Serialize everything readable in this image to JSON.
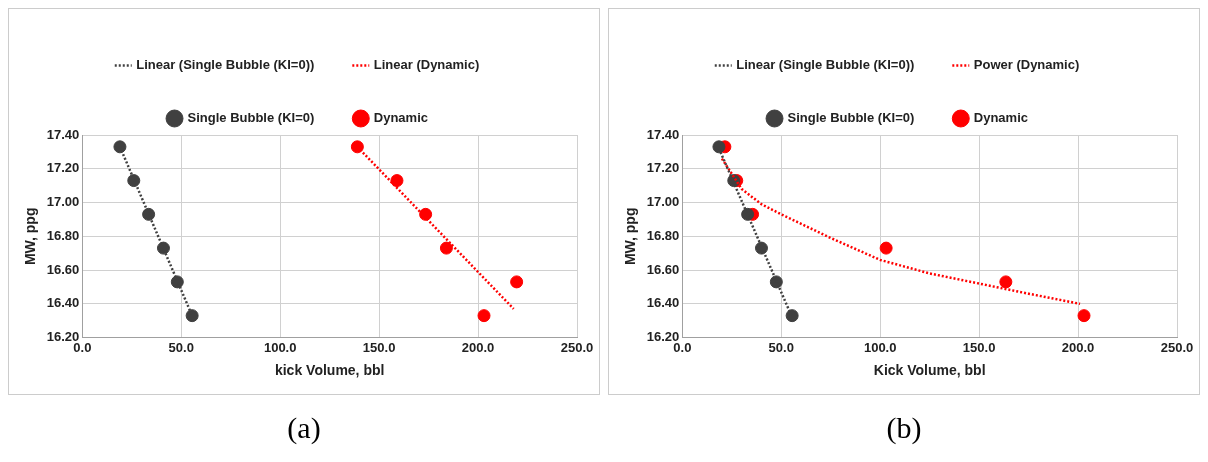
{
  "chart_data": [
    {
      "type": "scatter",
      "xlabel": "kick Volume, bbl",
      "ylabel": "MW, ppg",
      "xlim": [
        0,
        250
      ],
      "ylim": [
        16.2,
        17.4
      ],
      "xticks": [
        {
          "value": 0,
          "label": "0.0"
        },
        {
          "value": 50,
          "label": "50.0"
        },
        {
          "value": 100,
          "label": "100.0"
        },
        {
          "value": 150,
          "label": "150.0"
        },
        {
          "value": 200,
          "label": "200.0"
        },
        {
          "value": 250,
          "label": "250.0"
        }
      ],
      "yticks": [
        {
          "value": 16.2,
          "label": "16.20"
        },
        {
          "value": 16.4,
          "label": "16.40"
        },
        {
          "value": 16.6,
          "label": "16.60"
        },
        {
          "value": 16.8,
          "label": "16.80"
        },
        {
          "value": 17.0,
          "label": "17.00"
        },
        {
          "value": 17.2,
          "label": "17.20"
        },
        {
          "value": 17.4,
          "label": "17.40"
        }
      ],
      "grid": true,
      "legend": "top",
      "marker": "circle",
      "annotations": [
        "(a)"
      ],
      "series": [
        {
          "name": "Dynamic",
          "color": "#ff0000",
          "x": [
            139,
            159,
            173.5,
            184,
            219.5,
            203
          ],
          "values": [
            17.33,
            17.13,
            16.93,
            16.73,
            16.53,
            16.33
          ]
        },
        {
          "name": "Single Bubble (KI=0)",
          "color": "#404040",
          "x": [
            19,
            26,
            33.5,
            41,
            48,
            55.5
          ],
          "values": [
            17.33,
            17.13,
            16.93,
            16.73,
            16.53,
            16.33
          ]
        },
        {
          "name": "Linear (Dynamic)",
          "type": "line",
          "color": "#ff0000",
          "line_style": "dotted",
          "marker": "none",
          "x": [
            139,
            218
          ],
          "values": [
            17.33,
            16.37
          ]
        },
        {
          "name": "Linear (Single Bubble (KI=0))",
          "type": "line",
          "color": "#404040",
          "line_style": "dotted",
          "marker": "none",
          "x": [
            19,
            55.5
          ],
          "values": [
            17.33,
            16.33
          ]
        }
      ]
    },
    {
      "type": "scatter",
      "xlabel": "Kick Volume, bbl",
      "ylabel": "MW, ppg",
      "xlim": [
        0,
        250
      ],
      "ylim": [
        16.2,
        17.4
      ],
      "xticks": [
        {
          "value": 0,
          "label": "0.0"
        },
        {
          "value": 50,
          "label": "50.0"
        },
        {
          "value": 100,
          "label": "100.0"
        },
        {
          "value": 150,
          "label": "150.0"
        },
        {
          "value": 200,
          "label": "200.0"
        },
        {
          "value": 250,
          "label": "250.0"
        }
      ],
      "yticks": [
        {
          "value": 16.2,
          "label": "16.20"
        },
        {
          "value": 16.4,
          "label": "16.40"
        },
        {
          "value": 16.6,
          "label": "16.60"
        },
        {
          "value": 16.8,
          "label": "16.80"
        },
        {
          "value": 17.0,
          "label": "17.00"
        },
        {
          "value": 17.2,
          "label": "17.20"
        },
        {
          "value": 17.4,
          "label": "17.40"
        }
      ],
      "grid": true,
      "legend": "top",
      "marker": "circle",
      "annotations": [
        "(b)"
      ],
      "series": [
        {
          "name": "Dynamic",
          "color": "#ff0000",
          "x": [
            21.5,
            27.5,
            35.5,
            103,
            163.5,
            203
          ],
          "values": [
            17.33,
            17.13,
            16.93,
            16.73,
            16.53,
            16.33
          ]
        },
        {
          "name": "Single Bubble (KI=0)",
          "color": "#404040",
          "x": [
            18.5,
            26,
            33,
            40,
            47.5,
            55.5
          ],
          "values": [
            17.33,
            17.13,
            16.93,
            16.73,
            16.53,
            16.33
          ]
        },
        {
          "name": "Power (Dynamic)",
          "type": "line",
          "color": "#ff0000",
          "line_style": "dotted",
          "marker": "none",
          "x": [
            20,
            30,
            40,
            50,
            75,
            100,
            125,
            150,
            175,
            201
          ],
          "values": [
            17.26,
            17.08,
            16.99,
            16.93,
            16.79,
            16.66,
            16.58,
            16.52,
            16.46,
            16.4
          ]
        },
        {
          "name": "Linear (Single Bubble (KI=0))",
          "type": "line",
          "color": "#404040",
          "line_style": "dotted",
          "marker": "none",
          "x": [
            18.5,
            55.5
          ],
          "values": [
            17.32,
            16.32
          ]
        }
      ]
    }
  ]
}
